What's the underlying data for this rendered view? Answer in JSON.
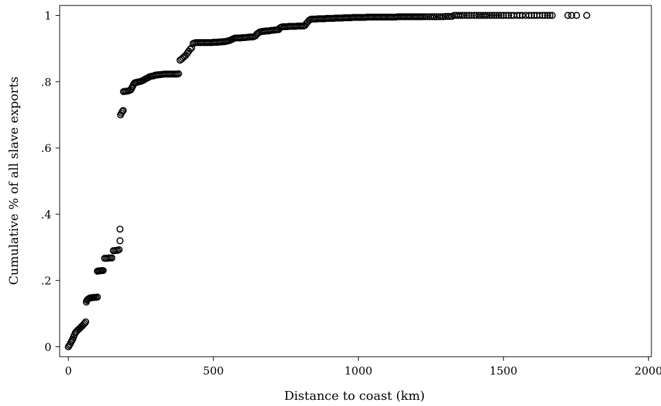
{
  "chart_data": {
    "type": "scatter",
    "title": "",
    "xlabel": "Distance to coast (km)",
    "ylabel": "Cumulative % of all slave exports",
    "xlim": [
      -30,
      2010
    ],
    "ylim": [
      -0.03,
      1.03
    ],
    "x_ticks": [
      0,
      500,
      1000,
      1500,
      2000
    ],
    "x_tick_labels": [
      "0",
      "500",
      "1000",
      "1500",
      "2000"
    ],
    "y_ticks": [
      0,
      0.2,
      0.4,
      0.6,
      0.8,
      1
    ],
    "y_tick_labels": [
      "0",
      ".2",
      ".4",
      ".6",
      ".8",
      "1"
    ],
    "grid": false,
    "legend": "none",
    "marker": "hollow-circle",
    "marker_color": "#000000",
    "points": [
      [
        0,
        0.0
      ],
      [
        3,
        0.004
      ],
      [
        6,
        0.008
      ],
      [
        9,
        0.013
      ],
      [
        12,
        0.018
      ],
      [
        15,
        0.023
      ],
      [
        18,
        0.03
      ],
      [
        21,
        0.036
      ],
      [
        24,
        0.042
      ],
      [
        28,
        0.046
      ],
      [
        32,
        0.05
      ],
      [
        36,
        0.053
      ],
      [
        40,
        0.056
      ],
      [
        44,
        0.06
      ],
      [
        48,
        0.063
      ],
      [
        52,
        0.067
      ],
      [
        56,
        0.071
      ],
      [
        60,
        0.075
      ],
      [
        62,
        0.135
      ],
      [
        64,
        0.14
      ],
      [
        67,
        0.143
      ],
      [
        70,
        0.145
      ],
      [
        74,
        0.147
      ],
      [
        78,
        0.148
      ],
      [
        82,
        0.148
      ],
      [
        86,
        0.149
      ],
      [
        90,
        0.149
      ],
      [
        95,
        0.149
      ],
      [
        100,
        0.15
      ],
      [
        100,
        0.228
      ],
      [
        104,
        0.229
      ],
      [
        108,
        0.229
      ],
      [
        112,
        0.23
      ],
      [
        116,
        0.23
      ],
      [
        120,
        0.23
      ],
      [
        125,
        0.267
      ],
      [
        130,
        0.267
      ],
      [
        135,
        0.267
      ],
      [
        140,
        0.268
      ],
      [
        145,
        0.268
      ],
      [
        150,
        0.268
      ],
      [
        155,
        0.29
      ],
      [
        160,
        0.29
      ],
      [
        165,
        0.291
      ],
      [
        170,
        0.291
      ],
      [
        175,
        0.293
      ],
      [
        178,
        0.32
      ],
      [
        178,
        0.355
      ],
      [
        180,
        0.7
      ],
      [
        183,
        0.705
      ],
      [
        186,
        0.71
      ],
      [
        189,
        0.713
      ],
      [
        190,
        0.77
      ],
      [
        195,
        0.771
      ],
      [
        200,
        0.771
      ],
      [
        205,
        0.772
      ],
      [
        210,
        0.773
      ],
      [
        215,
        0.775
      ],
      [
        218,
        0.78
      ],
      [
        221,
        0.785
      ],
      [
        224,
        0.79
      ],
      [
        227,
        0.795
      ],
      [
        230,
        0.797
      ],
      [
        235,
        0.798
      ],
      [
        240,
        0.799
      ],
      [
        245,
        0.8
      ],
      [
        250,
        0.801
      ],
      [
        255,
        0.803
      ],
      [
        260,
        0.805
      ],
      [
        265,
        0.808
      ],
      [
        270,
        0.81
      ],
      [
        275,
        0.812
      ],
      [
        280,
        0.815
      ],
      [
        285,
        0.816
      ],
      [
        290,
        0.817
      ],
      [
        295,
        0.818
      ],
      [
        300,
        0.82
      ],
      [
        305,
        0.82
      ],
      [
        310,
        0.821
      ],
      [
        315,
        0.821
      ],
      [
        320,
        0.822
      ],
      [
        325,
        0.822
      ],
      [
        330,
        0.823
      ],
      [
        335,
        0.823
      ],
      [
        340,
        0.823
      ],
      [
        345,
        0.823
      ],
      [
        350,
        0.823
      ],
      [
        355,
        0.823
      ],
      [
        360,
        0.823
      ],
      [
        365,
        0.823
      ],
      [
        370,
        0.823
      ],
      [
        375,
        0.823
      ],
      [
        380,
        0.824
      ],
      [
        385,
        0.865
      ],
      [
        390,
        0.868
      ],
      [
        395,
        0.872
      ],
      [
        400,
        0.876
      ],
      [
        405,
        0.88
      ],
      [
        410,
        0.886
      ],
      [
        415,
        0.892
      ],
      [
        420,
        0.898
      ],
      [
        425,
        0.902
      ],
      [
        430,
        0.915
      ],
      [
        435,
        0.917
      ],
      [
        440,
        0.918
      ],
      [
        445,
        0.918
      ],
      [
        450,
        0.918
      ],
      [
        455,
        0.918
      ],
      [
        460,
        0.918
      ],
      [
        465,
        0.918
      ],
      [
        470,
        0.918
      ],
      [
        475,
        0.918
      ],
      [
        480,
        0.918
      ],
      [
        485,
        0.918
      ],
      [
        490,
        0.918
      ],
      [
        495,
        0.918
      ],
      [
        500,
        0.919
      ],
      [
        505,
        0.919
      ],
      [
        510,
        0.919
      ],
      [
        515,
        0.919
      ],
      [
        520,
        0.92
      ],
      [
        525,
        0.92
      ],
      [
        530,
        0.92
      ],
      [
        535,
        0.921
      ],
      [
        540,
        0.921
      ],
      [
        545,
        0.922
      ],
      [
        550,
        0.923
      ],
      [
        555,
        0.924
      ],
      [
        560,
        0.926
      ],
      [
        565,
        0.928
      ],
      [
        570,
        0.93
      ],
      [
        575,
        0.932
      ],
      [
        580,
        0.932
      ],
      [
        585,
        0.932
      ],
      [
        590,
        0.932
      ],
      [
        595,
        0.932
      ],
      [
        600,
        0.933
      ],
      [
        605,
        0.933
      ],
      [
        610,
        0.933
      ],
      [
        615,
        0.934
      ],
      [
        620,
        0.934
      ],
      [
        625,
        0.935
      ],
      [
        630,
        0.935
      ],
      [
        635,
        0.935
      ],
      [
        640,
        0.936
      ],
      [
        645,
        0.938
      ],
      [
        650,
        0.944
      ],
      [
        655,
        0.947
      ],
      [
        660,
        0.95
      ],
      [
        665,
        0.951
      ],
      [
        670,
        0.952
      ],
      [
        675,
        0.952
      ],
      [
        680,
        0.953
      ],
      [
        685,
        0.953
      ],
      [
        690,
        0.953
      ],
      [
        695,
        0.954
      ],
      [
        700,
        0.955
      ],
      [
        705,
        0.955
      ],
      [
        710,
        0.956
      ],
      [
        715,
        0.956
      ],
      [
        720,
        0.957
      ],
      [
        725,
        0.957
      ],
      [
        730,
        0.963
      ],
      [
        735,
        0.965
      ],
      [
        740,
        0.966
      ],
      [
        745,
        0.966
      ],
      [
        750,
        0.966
      ],
      [
        755,
        0.966
      ],
      [
        760,
        0.967
      ],
      [
        765,
        0.967
      ],
      [
        770,
        0.967
      ],
      [
        775,
        0.967
      ],
      [
        780,
        0.967
      ],
      [
        785,
        0.967
      ],
      [
        790,
        0.968
      ],
      [
        795,
        0.968
      ],
      [
        800,
        0.968
      ],
      [
        805,
        0.968
      ],
      [
        810,
        0.968
      ],
      [
        815,
        0.969
      ],
      [
        820,
        0.975
      ],
      [
        825,
        0.98
      ],
      [
        830,
        0.985
      ],
      [
        835,
        0.988
      ],
      [
        840,
        0.989
      ],
      [
        845,
        0.989
      ],
      [
        850,
        0.989
      ],
      [
        855,
        0.989
      ],
      [
        860,
        0.99
      ],
      [
        865,
        0.99
      ],
      [
        870,
        0.99
      ],
      [
        875,
        0.99
      ],
      [
        880,
        0.99
      ],
      [
        885,
        0.99
      ],
      [
        890,
        0.991
      ],
      [
        895,
        0.991
      ],
      [
        900,
        0.991
      ],
      [
        905,
        0.991
      ],
      [
        910,
        0.991
      ],
      [
        915,
        0.991
      ],
      [
        920,
        0.992
      ],
      [
        925,
        0.992
      ],
      [
        930,
        0.992
      ],
      [
        935,
        0.992
      ],
      [
        940,
        0.992
      ],
      [
        945,
        0.992
      ],
      [
        950,
        0.993
      ],
      [
        955,
        0.993
      ],
      [
        960,
        0.993
      ],
      [
        965,
        0.993
      ],
      [
        970,
        0.993
      ],
      [
        975,
        0.993
      ],
      [
        980,
        0.994
      ],
      [
        985,
        0.994
      ],
      [
        990,
        0.994
      ],
      [
        995,
        0.994
      ],
      [
        1000,
        0.994
      ],
      [
        1005,
        0.994
      ],
      [
        1010,
        0.994
      ],
      [
        1015,
        0.994
      ],
      [
        1020,
        0.994
      ],
      [
        1025,
        0.994
      ],
      [
        1030,
        0.995
      ],
      [
        1035,
        0.995
      ],
      [
        1040,
        0.995
      ],
      [
        1045,
        0.995
      ],
      [
        1050,
        0.995
      ],
      [
        1055,
        0.995
      ],
      [
        1060,
        0.995
      ],
      [
        1065,
        0.995
      ],
      [
        1070,
        0.995
      ],
      [
        1075,
        0.995
      ],
      [
        1080,
        0.995
      ],
      [
        1085,
        0.995
      ],
      [
        1090,
        0.995
      ],
      [
        1095,
        0.995
      ],
      [
        1100,
        0.995
      ],
      [
        1105,
        0.995
      ],
      [
        1110,
        0.995
      ],
      [
        1115,
        0.995
      ],
      [
        1120,
        0.995
      ],
      [
        1125,
        0.995
      ],
      [
        1130,
        0.995
      ],
      [
        1135,
        0.996
      ],
      [
        1140,
        0.996
      ],
      [
        1145,
        0.996
      ],
      [
        1150,
        0.996
      ],
      [
        1155,
        0.996
      ],
      [
        1160,
        0.996
      ],
      [
        1165,
        0.996
      ],
      [
        1170,
        0.996
      ],
      [
        1175,
        0.996
      ],
      [
        1180,
        0.996
      ],
      [
        1185,
        0.996
      ],
      [
        1190,
        0.996
      ],
      [
        1195,
        0.996
      ],
      [
        1200,
        0.996
      ],
      [
        1205,
        0.996
      ],
      [
        1210,
        0.996
      ],
      [
        1215,
        0.996
      ],
      [
        1220,
        0.996
      ],
      [
        1225,
        0.996
      ],
      [
        1232,
        0.996
      ],
      [
        1240,
        0.996
      ],
      [
        1248,
        0.996
      ],
      [
        1255,
        0.996
      ],
      [
        1262,
        0.996
      ],
      [
        1270,
        0.996
      ],
      [
        1278,
        0.996
      ],
      [
        1285,
        0.996
      ],
      [
        1292,
        0.996
      ],
      [
        1300,
        0.997
      ],
      [
        1308,
        0.997
      ],
      [
        1315,
        0.997
      ],
      [
        1322,
        0.997
      ],
      [
        1330,
        1.0
      ],
      [
        1337,
        1.0
      ],
      [
        1344,
        1.0
      ],
      [
        1351,
        1.0
      ],
      [
        1358,
        1.0
      ],
      [
        1365,
        1.0
      ],
      [
        1375,
        1.0
      ],
      [
        1382,
        1.0
      ],
      [
        1390,
        1.0
      ],
      [
        1400,
        1.0
      ],
      [
        1407,
        1.0
      ],
      [
        1415,
        1.0
      ],
      [
        1422,
        1.0
      ],
      [
        1430,
        1.0
      ],
      [
        1437,
        1.0
      ],
      [
        1444,
        1.0
      ],
      [
        1452,
        1.0
      ],
      [
        1460,
        1.0
      ],
      [
        1468,
        1.0
      ],
      [
        1476,
        1.0
      ],
      [
        1484,
        1.0
      ],
      [
        1492,
        1.0
      ],
      [
        1500,
        1.0
      ],
      [
        1510,
        1.0
      ],
      [
        1518,
        1.0
      ],
      [
        1527,
        1.0
      ],
      [
        1535,
        1.0
      ],
      [
        1547,
        1.0
      ],
      [
        1556,
        1.0
      ],
      [
        1565,
        1.0
      ],
      [
        1577,
        1.0
      ],
      [
        1588,
        1.0
      ],
      [
        1597,
        1.0
      ],
      [
        1606,
        1.0
      ],
      [
        1615,
        1.0
      ],
      [
        1625,
        1.0
      ],
      [
        1635,
        1.0
      ],
      [
        1643,
        1.0
      ],
      [
        1652,
        1.0
      ],
      [
        1660,
        1.0
      ],
      [
        1668,
        1.0
      ],
      [
        1722,
        1.0
      ],
      [
        1735,
        1.0
      ],
      [
        1752,
        1.0
      ],
      [
        1787,
        1.0
      ]
    ]
  }
}
